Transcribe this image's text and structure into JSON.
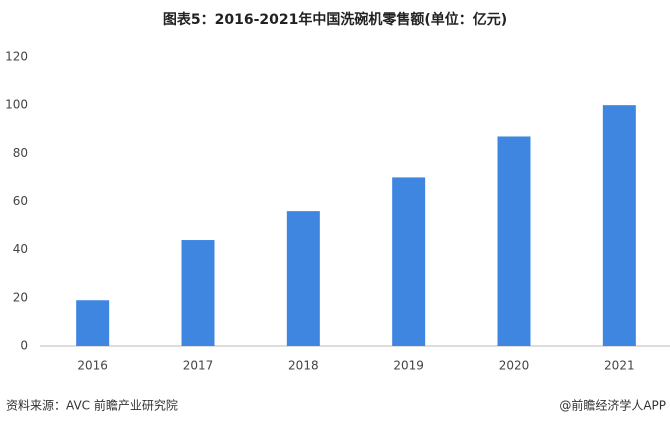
{
  "chart_data": {
    "type": "bar",
    "title": "图表5：2016-2021年中国洗碗机零售额(单位：亿元)",
    "categories": [
      "2016",
      "2017",
      "2018",
      "2019",
      "2020",
      "2021"
    ],
    "values": [
      19,
      44,
      56,
      70,
      87,
      100
    ],
    "color": "#3f86e0",
    "ylim": [
      0,
      120
    ],
    "yticks": [
      0,
      20,
      40,
      60,
      80,
      100,
      120
    ],
    "grid": false,
    "source": "资料来源：AVC 前瞻产业研究院",
    "credit": "@前瞻经济学人APP"
  }
}
